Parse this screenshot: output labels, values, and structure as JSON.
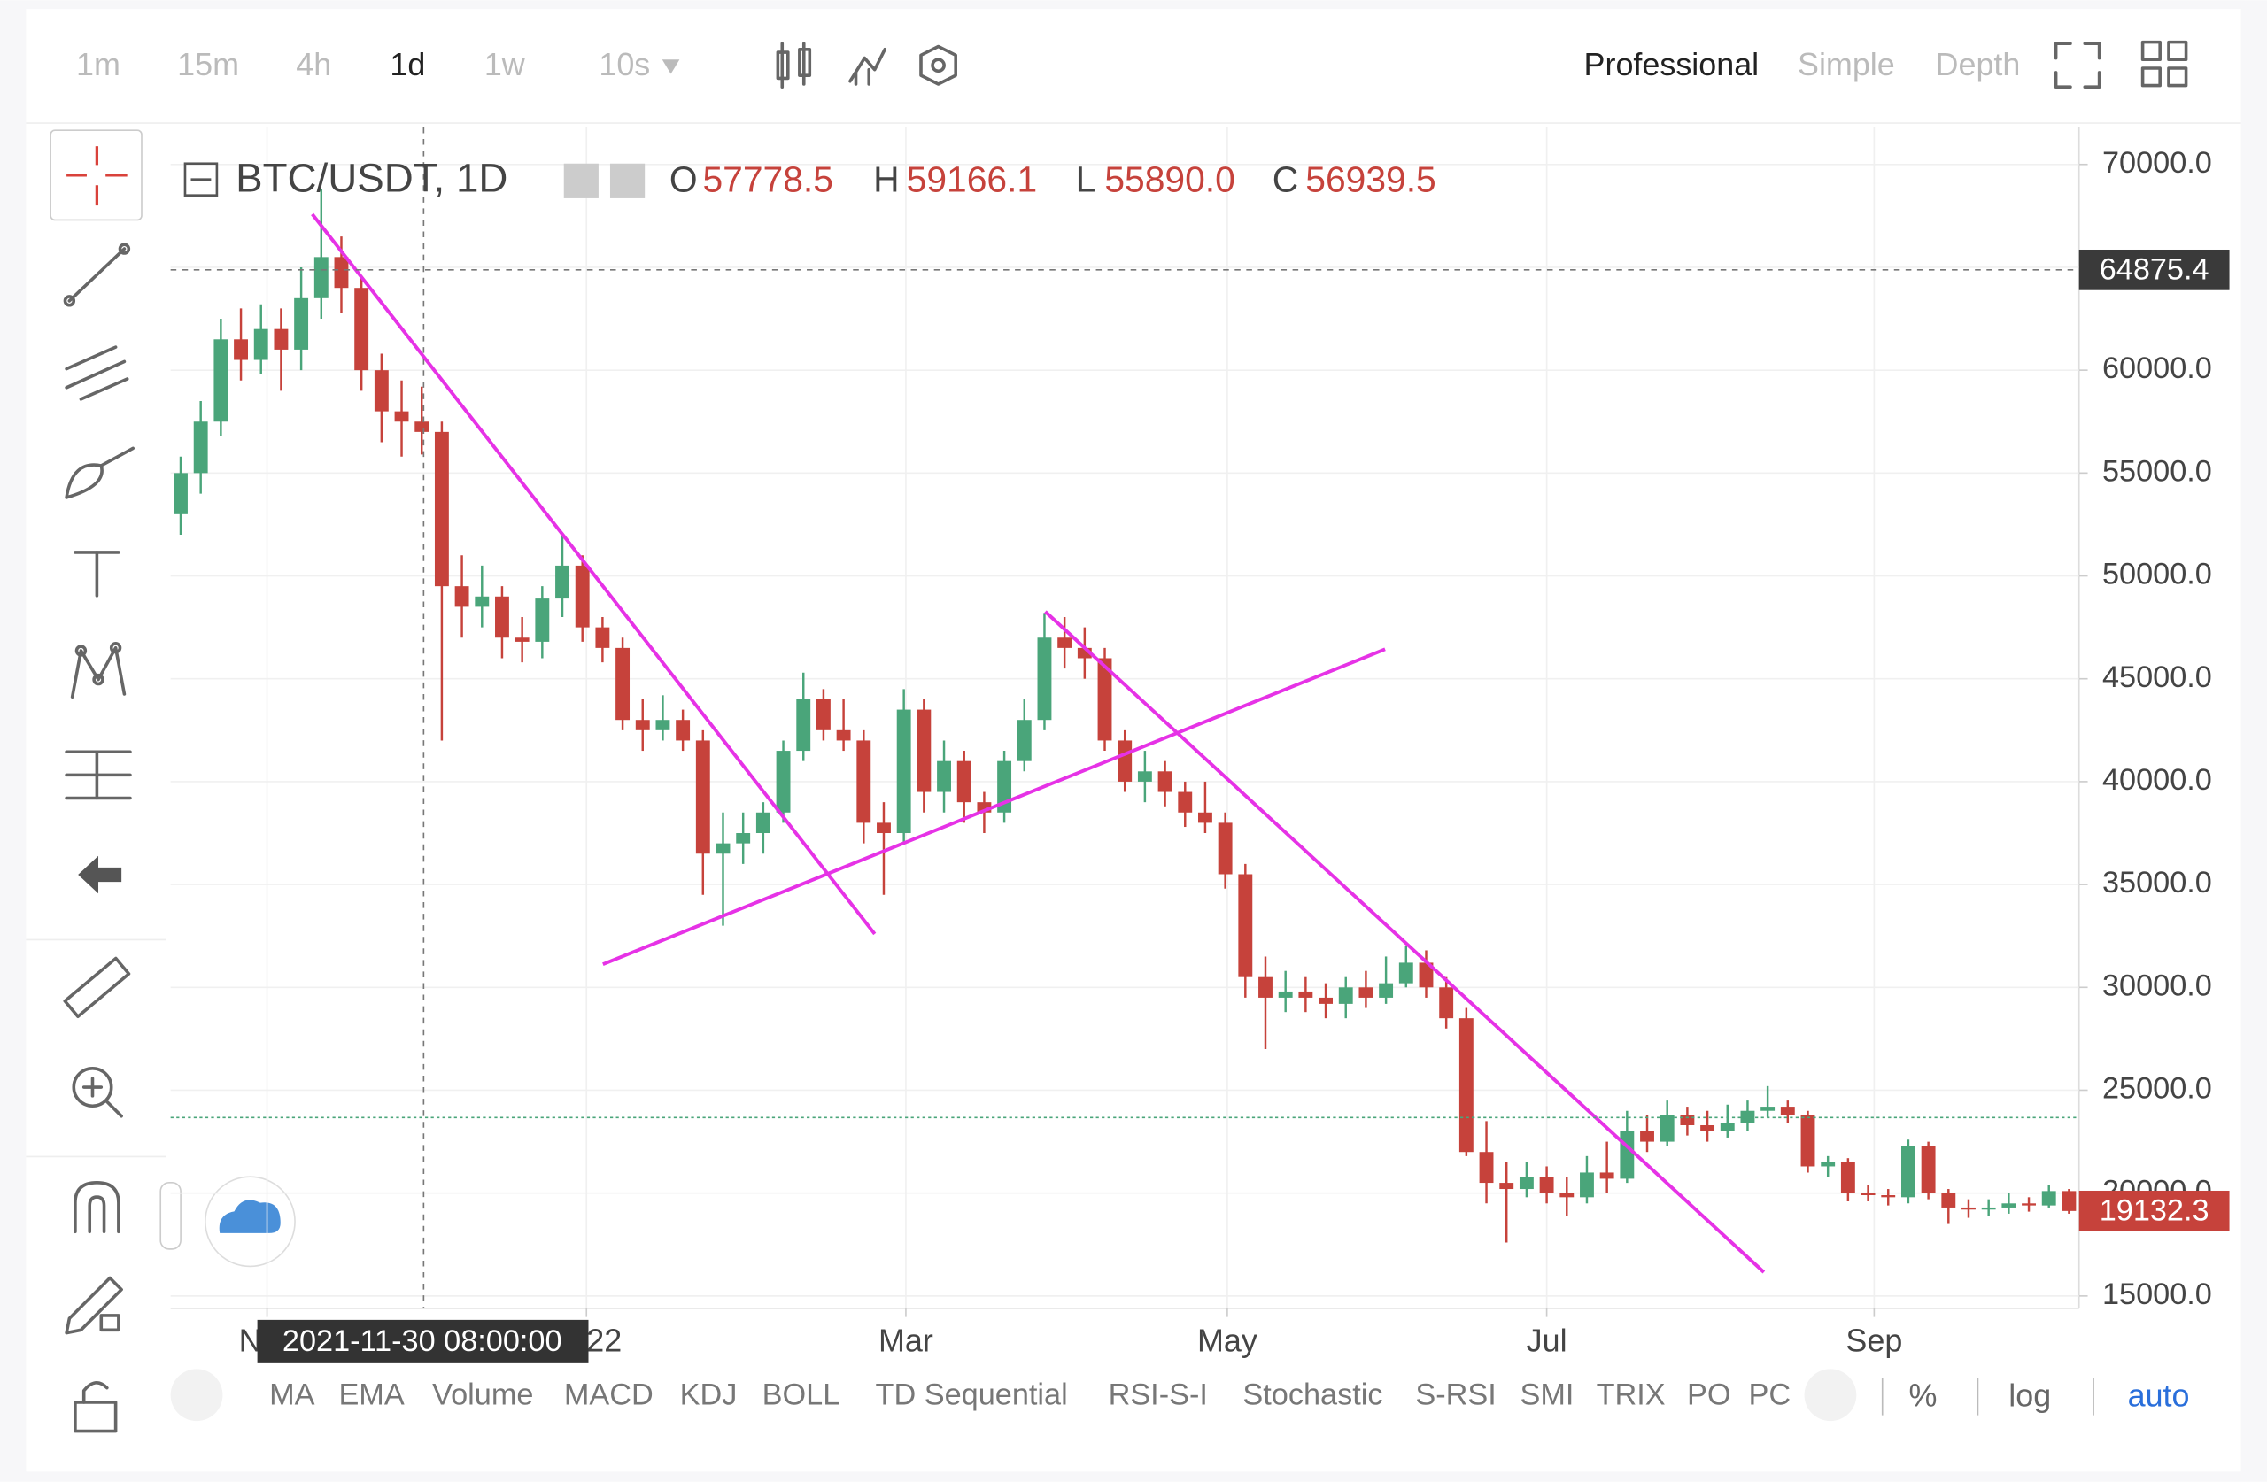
{
  "toolbar": {
    "intervals": [
      "1m",
      "15m",
      "4h",
      "1d",
      "1w",
      "10s"
    ],
    "modes": [
      "Professional",
      "Simple",
      "Depth"
    ]
  },
  "header": {
    "pair": "BTC/USDT, 1D",
    "o_label": "O",
    "o": "57778.5",
    "h_label": "H",
    "h": "59166.1",
    "l_label": "L",
    "l": "55890.0",
    "c_label": "C",
    "c": "56939.5"
  },
  "cursor_time": "2021-11-30 08:00:00",
  "indicators": [
    "MA",
    "EMA",
    "Volume",
    "MACD",
    "KDJ",
    "BOLL",
    "TD Sequential",
    "RSI-S-I",
    "Stochastic",
    "S-RSI",
    "SMI",
    "TRIX",
    "PO",
    "PC"
  ],
  "scale_options": [
    "%",
    "log",
    "auto"
  ],
  "chart_data": {
    "type": "candlestick",
    "up_color": "#4aa57a",
    "down_color": "#c6423b",
    "xlim": [
      0,
      95
    ],
    "xticks": [
      {
        "value": 4.8,
        "label": "Nov"
      },
      {
        "value": 20.7,
        "label": "2022"
      },
      {
        "value": 36.6,
        "label": "Mar"
      },
      {
        "value": 52.6,
        "label": "May"
      },
      {
        "value": 68.5,
        "label": "Jul"
      },
      {
        "value": 84.8,
        "label": "Sep"
      }
    ],
    "ylim": [
      14400,
      71800
    ],
    "yticks": [
      {
        "value": 15000,
        "label": "15000.0"
      },
      {
        "value": 20000,
        "label": "20000.0"
      },
      {
        "value": 25000,
        "label": "25000.0"
      },
      {
        "value": 30000,
        "label": "30000.0"
      },
      {
        "value": 35000,
        "label": "35000.0"
      },
      {
        "value": 40000,
        "label": "40000.0"
      },
      {
        "value": 45000,
        "label": "45000.0"
      },
      {
        "value": 50000,
        "label": "50000.0"
      },
      {
        "value": 55000,
        "label": "55000.0"
      },
      {
        "value": 60000,
        "label": "60000.0"
      },
      {
        "value": 65000,
        "label": "65000.0"
      },
      {
        "value": 70000,
        "label": "70000.0"
      }
    ],
    "crosshair_price": {
      "value": 64875.4,
      "label": "64875.4"
    },
    "last_price": {
      "value": 19132.3,
      "label": "19132.3"
    },
    "ohlc": [
      [
        53000,
        55800,
        52000,
        55000
      ],
      [
        55000,
        58500,
        54000,
        57500
      ],
      [
        57500,
        62500,
        56800,
        61500
      ],
      [
        61500,
        63000,
        59500,
        60500
      ],
      [
        60500,
        63200,
        59800,
        62000
      ],
      [
        62000,
        63000,
        59000,
        61000
      ],
      [
        61000,
        65000,
        60000,
        63500
      ],
      [
        63500,
        68800,
        62500,
        65500
      ],
      [
        65500,
        66500,
        62800,
        64000
      ],
      [
        64000,
        64500,
        59000,
        60000
      ],
      [
        60000,
        60800,
        56500,
        58000
      ],
      [
        58000,
        59500,
        55800,
        57500
      ],
      [
        57500,
        59200,
        55900,
        57000
      ],
      [
        57000,
        57500,
        42000,
        49500
      ],
      [
        49500,
        51000,
        47000,
        48500
      ],
      [
        48500,
        50500,
        47500,
        49000
      ],
      [
        49000,
        49500,
        46000,
        47000
      ],
      [
        47000,
        48000,
        45800,
        46800
      ],
      [
        46800,
        49500,
        46000,
        48900
      ],
      [
        48900,
        52000,
        48000,
        50500
      ],
      [
        50500,
        51000,
        46800,
        47500
      ],
      [
        47500,
        48000,
        45800,
        46500
      ],
      [
        46500,
        47000,
        42500,
        43000
      ],
      [
        43000,
        44000,
        41500,
        42500
      ],
      [
        42500,
        44200,
        42000,
        43000
      ],
      [
        43000,
        43500,
        41500,
        42000
      ],
      [
        42000,
        42500,
        34500,
        36500
      ],
      [
        36500,
        38500,
        33000,
        37000
      ],
      [
        37000,
        38500,
        36000,
        37500
      ],
      [
        37500,
        39000,
        36500,
        38500
      ],
      [
        38500,
        42000,
        38000,
        41500
      ],
      [
        41500,
        45300,
        41000,
        44000
      ],
      [
        44000,
        44500,
        42000,
        42500
      ],
      [
        42500,
        44000,
        41500,
        42000
      ],
      [
        42000,
        42500,
        37000,
        38000
      ],
      [
        38000,
        39000,
        34500,
        37500
      ],
      [
        37500,
        44500,
        37000,
        43500
      ],
      [
        43500,
        44000,
        38500,
        39500
      ],
      [
        39500,
        42000,
        38500,
        41000
      ],
      [
        41000,
        41500,
        38000,
        39000
      ],
      [
        39000,
        39500,
        37500,
        38500
      ],
      [
        38500,
        41500,
        38000,
        41000
      ],
      [
        41000,
        44000,
        40500,
        43000
      ],
      [
        43000,
        48200,
        42500,
        47000
      ],
      [
        47000,
        48000,
        45500,
        46500
      ],
      [
        46500,
        47500,
        45000,
        46000
      ],
      [
        46000,
        46500,
        41500,
        42000
      ],
      [
        42000,
        42500,
        39500,
        40000
      ],
      [
        40000,
        41500,
        39000,
        40500
      ],
      [
        40500,
        41000,
        38800,
        39500
      ],
      [
        39500,
        40000,
        37800,
        38500
      ],
      [
        38500,
        40000,
        37500,
        38000
      ],
      [
        38000,
        38500,
        34800,
        35500
      ],
      [
        35500,
        36000,
        29500,
        30500
      ],
      [
        30500,
        31500,
        27000,
        29500
      ],
      [
        29500,
        30800,
        28800,
        29800
      ],
      [
        29800,
        30500,
        28800,
        29500
      ],
      [
        29500,
        30200,
        28500,
        29200
      ],
      [
        29200,
        30500,
        28500,
        30000
      ],
      [
        30000,
        30800,
        29000,
        29500
      ],
      [
        29500,
        31500,
        29200,
        30200
      ],
      [
        30200,
        32000,
        30000,
        31200
      ],
      [
        31200,
        31800,
        29500,
        30000
      ],
      [
        30000,
        30500,
        28000,
        28500
      ],
      [
        28500,
        29000,
        21800,
        22000
      ],
      [
        22000,
        23500,
        19500,
        20500
      ],
      [
        20500,
        21500,
        17600,
        20200
      ],
      [
        20200,
        21500,
        19800,
        20800
      ],
      [
        20800,
        21300,
        19500,
        20000
      ],
      [
        20000,
        20800,
        18900,
        19800
      ],
      [
        19800,
        21800,
        19500,
        21000
      ],
      [
        21000,
        22500,
        20000,
        20700
      ],
      [
        20700,
        24000,
        20500,
        23000
      ],
      [
        23000,
        23800,
        22000,
        22500
      ],
      [
        22500,
        24500,
        22300,
        23800
      ],
      [
        23800,
        24200,
        22800,
        23300
      ],
      [
        23300,
        24000,
        22500,
        23000
      ],
      [
        23000,
        24300,
        22700,
        23400
      ],
      [
        23400,
        24500,
        23000,
        24000
      ],
      [
        24000,
        25200,
        23700,
        24200
      ],
      [
        24200,
        24500,
        23400,
        23800
      ],
      [
        23800,
        24000,
        21000,
        21300
      ],
      [
        21300,
        21800,
        20800,
        21500
      ],
      [
        21500,
        21700,
        19600,
        20000
      ],
      [
        20000,
        20400,
        19600,
        19900
      ],
      [
        19900,
        20200,
        19400,
        19800
      ],
      [
        19800,
        22600,
        19500,
        22300
      ],
      [
        22300,
        22500,
        19700,
        20000
      ],
      [
        20000,
        20200,
        18500,
        19300
      ],
      [
        19300,
        19700,
        18800,
        19200
      ],
      [
        19200,
        19700,
        18900,
        19300
      ],
      [
        19300,
        20000,
        19000,
        19500
      ],
      [
        19500,
        19800,
        19100,
        19400
      ],
      [
        19400,
        20400,
        19300,
        20100
      ],
      [
        20100,
        20200,
        19000,
        19132.3
      ]
    ]
  }
}
